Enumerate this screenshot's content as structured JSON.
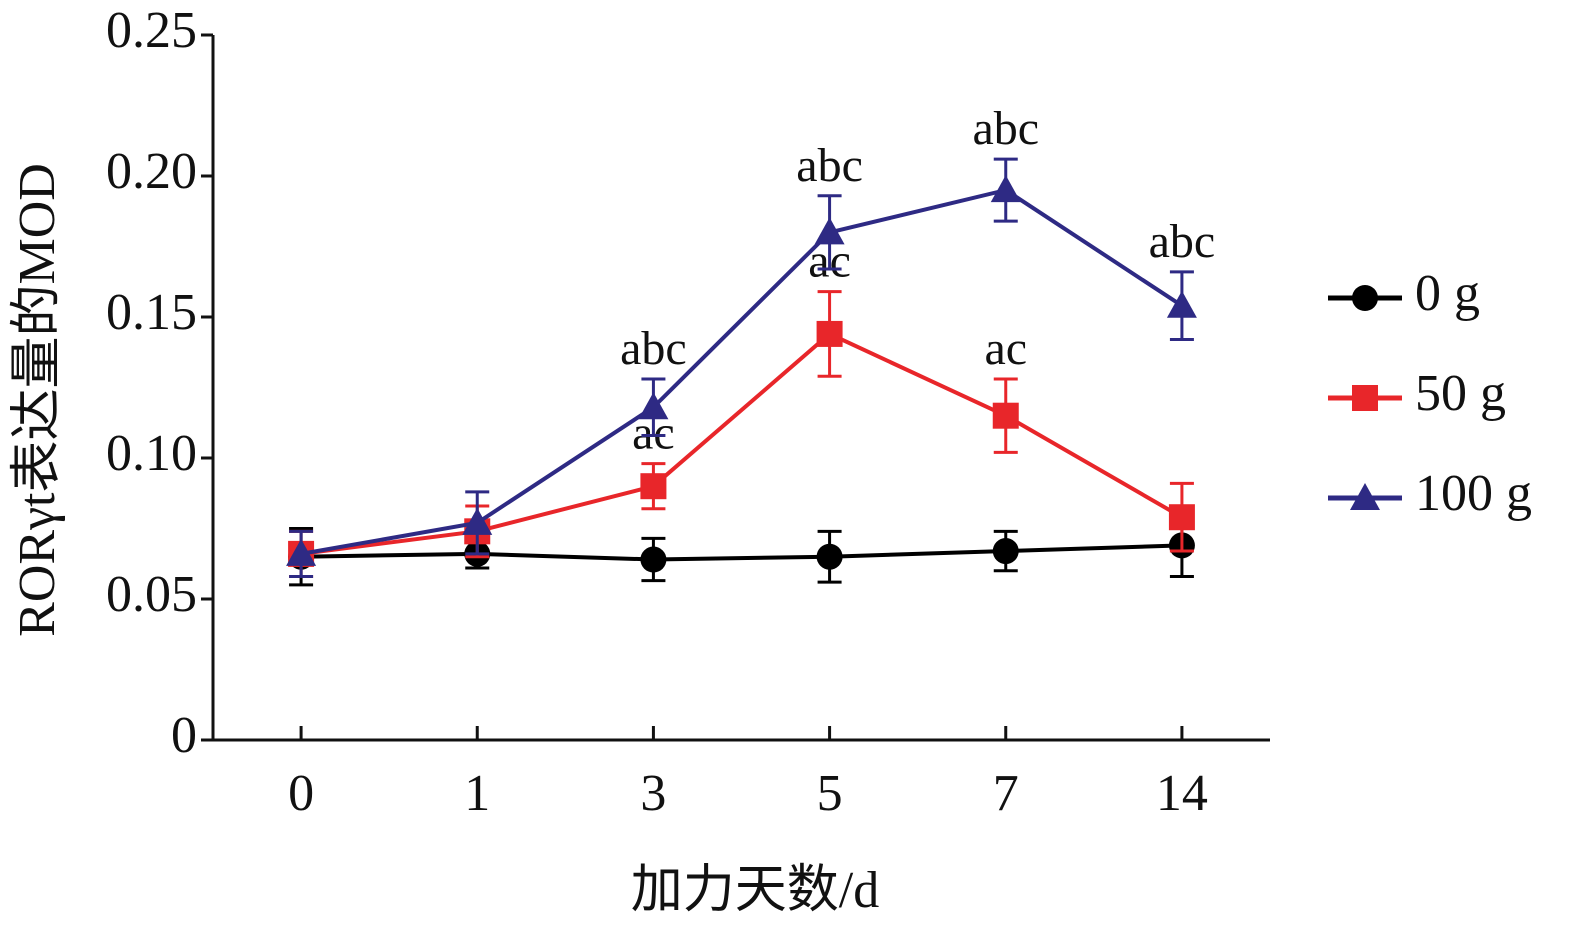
{
  "chart_data": {
    "type": "line",
    "y_label": "RORγt表达量的MOD",
    "x_label": "加力天数/d",
    "categories": [
      "0",
      "1",
      "3",
      "5",
      "7",
      "14"
    ],
    "ylim": [
      0,
      0.25
    ],
    "yticks": [
      0,
      0.05,
      {
        "value": 0.1,
        "label": "0.10"
      },
      0.15,
      {
        "value": 0.2,
        "label": "0.20"
      },
      0.25
    ],
    "grid": false,
    "legend": "right",
    "series": [
      {
        "name": "0 g",
        "color": "#000000",
        "marker": "circle",
        "values": [
          0.065,
          0.066,
          0.064,
          0.065,
          0.067,
          0.069
        ],
        "errors": [
          0.01,
          0.005,
          0.0075,
          0.009,
          0.007,
          0.011
        ],
        "annotations": [
          null,
          null,
          null,
          null,
          null,
          null
        ]
      },
      {
        "name": "50 g",
        "color": "#e8262a",
        "marker": "square",
        "values": [
          0.066,
          0.074,
          0.09,
          0.144,
          0.115,
          0.079
        ],
        "errors": [
          0.008,
          0.009,
          0.008,
          0.015,
          0.013,
          0.012
        ],
        "annotations": [
          null,
          null,
          "ac",
          "ac",
          "ac",
          null
        ]
      },
      {
        "name": "100 g",
        "color": "#2e2a84",
        "marker": "triangle",
        "values": [
          0.066,
          0.077,
          0.118,
          0.18,
          0.195,
          0.154
        ],
        "errors": [
          0.008,
          0.011,
          0.01,
          0.013,
          0.011,
          0.012
        ],
        "annotations": [
          null,
          null,
          "abc",
          "abc",
          "abc",
          "abc"
        ]
      }
    ]
  }
}
